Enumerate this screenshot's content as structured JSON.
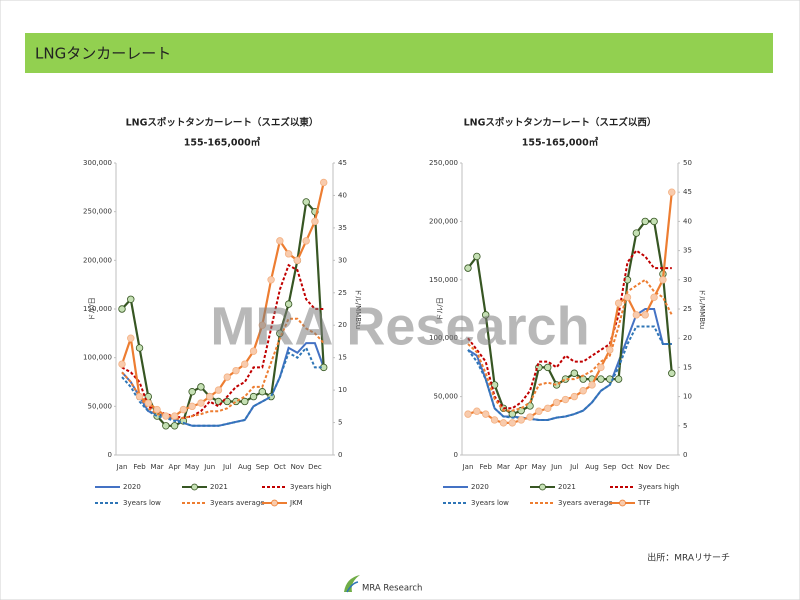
{
  "header": {
    "title": "LNGタンカーレート"
  },
  "watermark": "MRA Research",
  "source": "出所：MRAリサーチ",
  "logo": "MRA Research",
  "chart_data": [
    {
      "type": "line",
      "title": "LNGスポットタンカーレート（スエズ以東）",
      "subtitle": "155-165,000㎥",
      "ylabel": "ドル/日",
      "y2label": "ドル/MMBtu",
      "categories": [
        "Jan",
        null,
        "Feb",
        null,
        "Mar",
        null,
        "Apr",
        null,
        "May",
        null,
        "Jun",
        null,
        "Jul",
        null,
        "Aug",
        null,
        "Sep",
        null,
        "Oct",
        null,
        "Nov",
        null,
        "Dec",
        null
      ],
      "ylim": [
        0,
        300000
      ],
      "yticks": [
        0,
        {
          "value": 50000,
          "label": "50,000"
        },
        {
          "value": 100000,
          "label": "100,000"
        },
        {
          "value": 150000,
          "label": "150,000"
        },
        {
          "value": 200000,
          "label": "200,000"
        },
        {
          "value": 250000,
          "label": "250,000"
        },
        {
          "value": 300000,
          "label": "300,000"
        }
      ],
      "y2lim": [
        0,
        45
      ],
      "y2ticks": [
        0,
        5,
        10,
        15,
        20,
        25,
        30,
        35,
        40,
        45
      ],
      "grid": false,
      "series": [
        {
          "name": "2020",
          "color": "#4472c4",
          "style": "solid",
          "values": [
            85000,
            75000,
            60000,
            45000,
            42000,
            40000,
            37000,
            33000,
            30000,
            30000,
            30000,
            30000,
            32000,
            34000,
            36000,
            50000,
            55000,
            60000,
            80000,
            110000,
            105000,
            115000,
            115000,
            90000
          ]
        },
        {
          "name": "2021",
          "color": "#375623",
          "style": "solid",
          "marker": "#c5e0b4",
          "values": [
            150000,
            160000,
            110000,
            60000,
            40000,
            30000,
            30000,
            35000,
            65000,
            70000,
            60000,
            55000,
            55000,
            55000,
            55000,
            60000,
            65000,
            60000,
            125000,
            155000,
            200000,
            260000,
            250000,
            90000
          ]
        },
        {
          "name": "3years high",
          "color": "#c00000",
          "style": "dashed",
          "values": [
            90000,
            85000,
            75000,
            50000,
            45000,
            42000,
            40000,
            38000,
            40000,
            45000,
            55000,
            50000,
            60000,
            70000,
            75000,
            90000,
            90000,
            130000,
            170000,
            195000,
            190000,
            160000,
            150000,
            150000
          ]
        },
        {
          "name": "3years low",
          "color": "#2e75b6",
          "style": "dashed",
          "values": [
            80000,
            70000,
            55000,
            45000,
            40000,
            38000,
            35000,
            33000,
            30000,
            30000,
            30000,
            30000,
            32000,
            34000,
            36000,
            50000,
            55000,
            60000,
            80000,
            105000,
            100000,
            110000,
            90000,
            90000
          ]
        },
        {
          "name": "3years average",
          "color": "#ed7d31",
          "style": "dashed",
          "values": [
            85000,
            75000,
            60000,
            48000,
            42000,
            40000,
            37000,
            38000,
            40000,
            42000,
            45000,
            45000,
            48000,
            55000,
            60000,
            70000,
            70000,
            95000,
            120000,
            140000,
            140000,
            130000,
            125000,
            115000
          ]
        },
        {
          "name": "JKM",
          "color": "#ed7d31",
          "style": "solid",
          "marker": "#f8cbad",
          "axis": "y2",
          "values": [
            14,
            18,
            9,
            8,
            7,
            6,
            6,
            7,
            7.5,
            8,
            9,
            10,
            12,
            13,
            14,
            16,
            20,
            27,
            33,
            31,
            30,
            33,
            36,
            42
          ]
        }
      ]
    },
    {
      "type": "line",
      "title": "LNGスポットタンカーレート（スエズ以西）",
      "subtitle": "155-165,000㎥",
      "ylabel": "ドル/日",
      "y2label": "ドル/MMBtu",
      "categories": [
        "Jan",
        null,
        "Feb",
        null,
        "Mar",
        null,
        "Apr",
        null,
        "May",
        null,
        "Jun",
        null,
        "Jul",
        null,
        "Aug",
        null,
        "Sep",
        null,
        "Oct",
        null,
        "Nov",
        null,
        "Dec",
        null
      ],
      "ylim": [
        0,
        250000
      ],
      "yticks": [
        0,
        {
          "value": 50000,
          "label": "50,000"
        },
        {
          "value": 100000,
          "label": "100,000"
        },
        {
          "value": 150000,
          "label": "150,000"
        },
        {
          "value": 200000,
          "label": "200,000"
        },
        {
          "value": 250000,
          "label": "250,000"
        }
      ],
      "y2lim": [
        0,
        50
      ],
      "y2ticks": [
        0,
        5,
        10,
        15,
        20,
        25,
        30,
        35,
        40,
        45,
        50
      ],
      "grid": false,
      "series": [
        {
          "name": "2020",
          "color": "#4472c4",
          "style": "solid",
          "values": [
            90000,
            85000,
            65000,
            40000,
            33000,
            33000,
            32000,
            31000,
            30000,
            30000,
            32000,
            33000,
            35000,
            38000,
            45000,
            55000,
            60000,
            80000,
            100000,
            120000,
            125000,
            125000,
            95000,
            95000
          ]
        },
        {
          "name": "2021",
          "color": "#375623",
          "style": "solid",
          "marker": "#c5e0b4",
          "values": [
            160000,
            170000,
            120000,
            60000,
            40000,
            35000,
            38000,
            42000,
            75000,
            75000,
            60000,
            65000,
            70000,
            65000,
            65000,
            65000,
            65000,
            65000,
            150000,
            190000,
            200000,
            200000,
            155000,
            70000
          ]
        },
        {
          "name": "3years high",
          "color": "#c00000",
          "style": "dashed",
          "values": [
            100000,
            90000,
            80000,
            50000,
            40000,
            40000,
            45000,
            55000,
            80000,
            80000,
            75000,
            85000,
            80000,
            80000,
            85000,
            90000,
            95000,
            120000,
            165000,
            175000,
            170000,
            160000,
            160000,
            160000
          ]
        },
        {
          "name": "3years low",
          "color": "#2e75b6",
          "style": "dashed",
          "values": [
            90000,
            80000,
            65000,
            40000,
            33000,
            32000,
            32000,
            31000,
            30000,
            30000,
            32000,
            33000,
            35000,
            38000,
            45000,
            55000,
            60000,
            75000,
            95000,
            110000,
            110000,
            110000,
            95000,
            95000
          ]
        },
        {
          "name": "3years average",
          "color": "#ed7d31",
          "style": "dashed",
          "values": [
            95000,
            88000,
            70000,
            48000,
            38000,
            38000,
            40000,
            45000,
            60000,
            62000,
            60000,
            65000,
            65000,
            68000,
            72000,
            80000,
            85000,
            110000,
            140000,
            145000,
            150000,
            140000,
            135000,
            120000
          ]
        },
        {
          "name": "TTF",
          "color": "#ed7d31",
          "style": "solid",
          "marker": "#f8cbad",
          "axis": "y2",
          "values": [
            7,
            7.5,
            7,
            6,
            5.5,
            5.5,
            6,
            6.5,
            7.5,
            8,
            9,
            9.5,
            10,
            11,
            12,
            15,
            18,
            26,
            27,
            24,
            24,
            27,
            30,
            45
          ]
        }
      ]
    }
  ]
}
